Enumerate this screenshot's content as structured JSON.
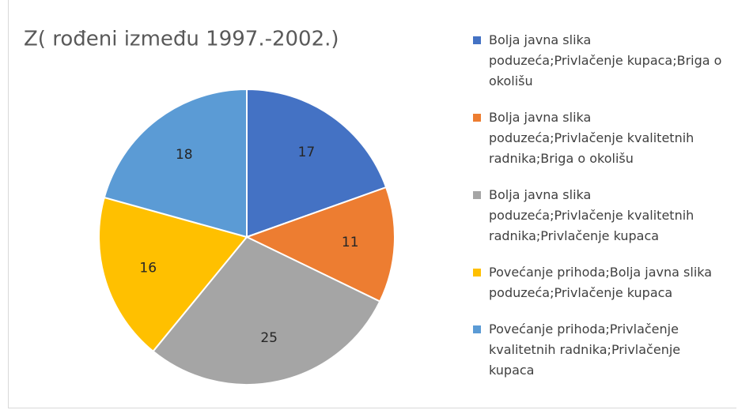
{
  "chart_data": {
    "type": "pie",
    "title": "Z( rođeni između 1997.-2002.)",
    "categories": [
      "Bolja javna slika poduzeća;Privlačenje kupaca;Briga o okolišu",
      "Bolja javna slika poduzeća;Privlačenje kvalitetnih radnika;Briga o okolišu",
      "Bolja javna slika poduzeća;Privlačenje kvalitetnih radnika;Privlačenje kupaca",
      "Povećanje prihoda;Bolja javna slika poduzeća;Privlačenje kupaca",
      "Povećanje prihoda;Privlačenje kvalitetnih radnika;Privlačenje kupaca"
    ],
    "values": [
      17,
      11,
      25,
      16,
      18
    ],
    "colors": [
      "#4472c4",
      "#ed7d31",
      "#a5a5a5",
      "#ffc000",
      "#5b9bd5"
    ],
    "legend": "right"
  }
}
